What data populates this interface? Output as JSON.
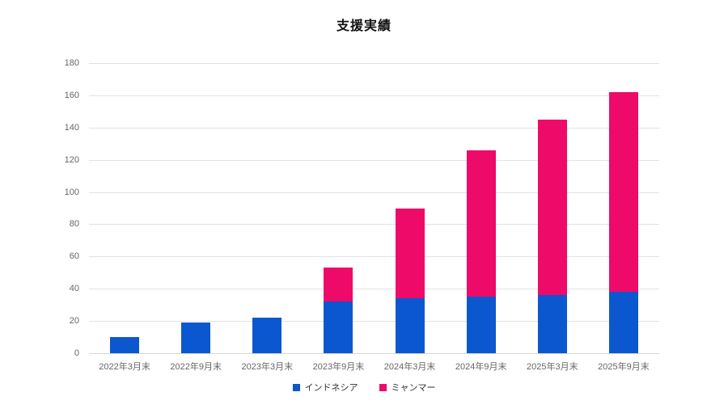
{
  "chart_data": {
    "type": "bar",
    "stacked": true,
    "title": "支援実績",
    "categories": [
      "2022年3月末",
      "2022年9月末",
      "2023年3月末",
      "2023年9月末",
      "2024年3月末",
      "2024年9月末",
      "2025年3月末",
      "2025年9月末"
    ],
    "series": [
      {
        "name": "インドネシア",
        "color": "#0b57d0",
        "values": [
          10,
          19,
          22,
          32,
          34,
          35,
          36,
          38
        ]
      },
      {
        "name": "ミャンマー",
        "color": "#ee0a68",
        "values": [
          0,
          0,
          0,
          21,
          56,
          91,
          109,
          124
        ]
      }
    ],
    "totals": [
      10,
      19,
      22,
      53,
      90,
      126,
      145,
      162
    ],
    "xlabel": "",
    "ylabel": "",
    "ylim": [
      0,
      180
    ],
    "yticks": [
      0,
      20,
      40,
      60,
      80,
      100,
      120,
      140,
      160,
      180
    ],
    "grid": "horizontal",
    "legend_position": "bottom",
    "colors": {
      "background": "#ffffff",
      "grid": "#e2e2e2",
      "axis": "#d6d6d6",
      "tick_text": "#666666",
      "legend_text": "#333333",
      "title_text": "#111111"
    }
  }
}
